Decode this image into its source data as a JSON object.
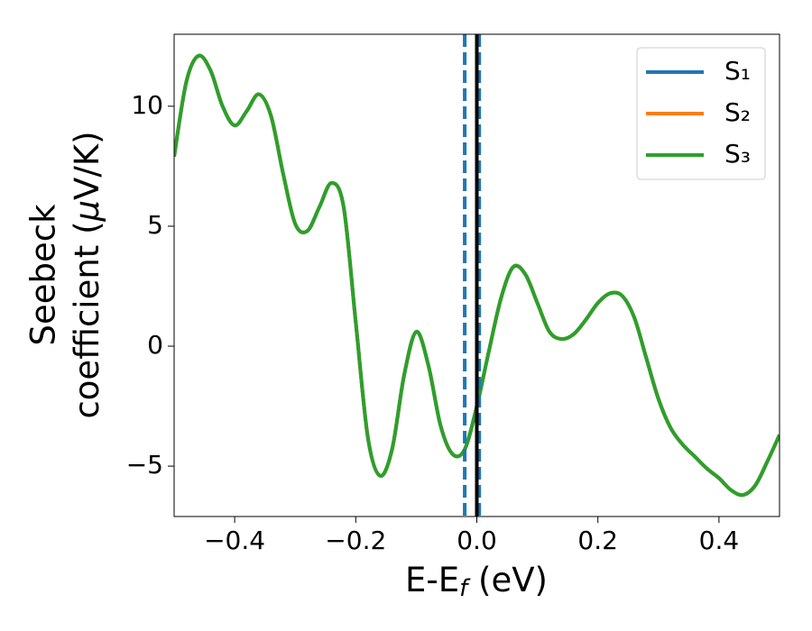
{
  "chart_data": {
    "type": "line",
    "xlabel": [
      "E-E",
      "f",
      " (eV)"
    ],
    "ylabel": [
      "Seebeck",
      "coefficient  (",
      "μ",
      "V/K)"
    ],
    "x": [
      -0.5,
      -0.48,
      -0.46,
      -0.44,
      -0.42,
      -0.4,
      -0.38,
      -0.36,
      -0.34,
      -0.32,
      -0.3,
      -0.28,
      -0.26,
      -0.24,
      -0.22,
      -0.2,
      -0.18,
      -0.16,
      -0.14,
      -0.12,
      -0.1,
      -0.08,
      -0.06,
      -0.04,
      -0.02,
      0,
      0.02,
      0.04,
      0.06,
      0.08,
      0.1,
      0.12,
      0.14,
      0.16,
      0.18,
      0.2,
      0.22,
      0.24,
      0.26,
      0.28,
      0.3,
      0.32,
      0.34,
      0.36,
      0.38,
      0.4,
      0.42,
      0.44,
      0.46,
      0.48,
      0.5
    ],
    "series": [
      {
        "name": "S₁",
        "color": "#1f77b4",
        "values": [
          7.9,
          11.0,
          12.1,
          11.5,
          10.0,
          9.2,
          9.8,
          10.5,
          9.6,
          7.2,
          5.1,
          4.8,
          5.8,
          6.8,
          5.8,
          1.0,
          -3.8,
          -5.4,
          -4.3,
          -1.2,
          0.6,
          -0.8,
          -3.3,
          -4.5,
          -4.3,
          -2.5,
          -0.2,
          2.0,
          3.3,
          3.0,
          1.8,
          0.6,
          0.3,
          0.5,
          1.1,
          1.8,
          2.2,
          2.1,
          1.2,
          -0.5,
          -2.2,
          -3.4,
          -4.1,
          -4.6,
          -5.1,
          -5.5,
          -6.0,
          -6.2,
          -5.8,
          -4.8,
          -3.7
        ]
      },
      {
        "name": "S₂",
        "color": "#ff7f0e",
        "values": [
          7.9,
          11.0,
          12.1,
          11.5,
          10.0,
          9.2,
          9.8,
          10.5,
          9.6,
          7.2,
          5.1,
          4.8,
          5.8,
          6.8,
          5.8,
          1.0,
          -3.8,
          -5.4,
          -4.3,
          -1.2,
          0.6,
          -0.8,
          -3.3,
          -4.5,
          -4.3,
          -2.5,
          -0.2,
          2.0,
          3.3,
          3.0,
          1.8,
          0.6,
          0.3,
          0.5,
          1.1,
          1.8,
          2.2,
          2.1,
          1.2,
          -0.5,
          -2.2,
          -3.4,
          -4.1,
          -4.6,
          -5.1,
          -5.5,
          -6.0,
          -6.2,
          -5.8,
          -4.8,
          -3.7
        ]
      },
      {
        "name": "S₃",
        "color": "#2ca02c",
        "values": [
          7.9,
          11.0,
          12.1,
          11.5,
          10.0,
          9.2,
          9.8,
          10.5,
          9.6,
          7.2,
          5.1,
          4.8,
          5.8,
          6.8,
          5.8,
          1.0,
          -3.8,
          -5.4,
          -4.3,
          -1.2,
          0.6,
          -0.8,
          -3.3,
          -4.5,
          -4.3,
          -2.5,
          -0.2,
          2.0,
          3.3,
          3.0,
          1.8,
          0.6,
          0.3,
          0.5,
          1.1,
          1.8,
          2.2,
          2.1,
          1.2,
          -0.5,
          -2.2,
          -3.4,
          -4.1,
          -4.6,
          -5.1,
          -5.5,
          -6.0,
          -6.2,
          -5.8,
          -4.8,
          -3.7
        ]
      }
    ],
    "vlines": [
      {
        "x": -0.02,
        "color": "#1f77b4",
        "dashed": true
      },
      {
        "x": 0.004,
        "color": "#1f77b4",
        "dashed": true
      },
      {
        "x": 0,
        "color": "#000000",
        "dashed": false
      }
    ],
    "xlim": [
      -0.5,
      0.5
    ],
    "ylim": [
      -7.1,
      13.0
    ],
    "xticks": [
      {
        "value": -0.4,
        "label": "−0.4"
      },
      {
        "value": -0.2,
        "label": "−0.2"
      },
      {
        "value": 0,
        "label": "0.0"
      },
      0.2,
      0.4
    ],
    "yticks": [
      {
        "value": -5,
        "label": "−5"
      },
      0,
      5,
      10
    ],
    "legend": "upper right"
  }
}
